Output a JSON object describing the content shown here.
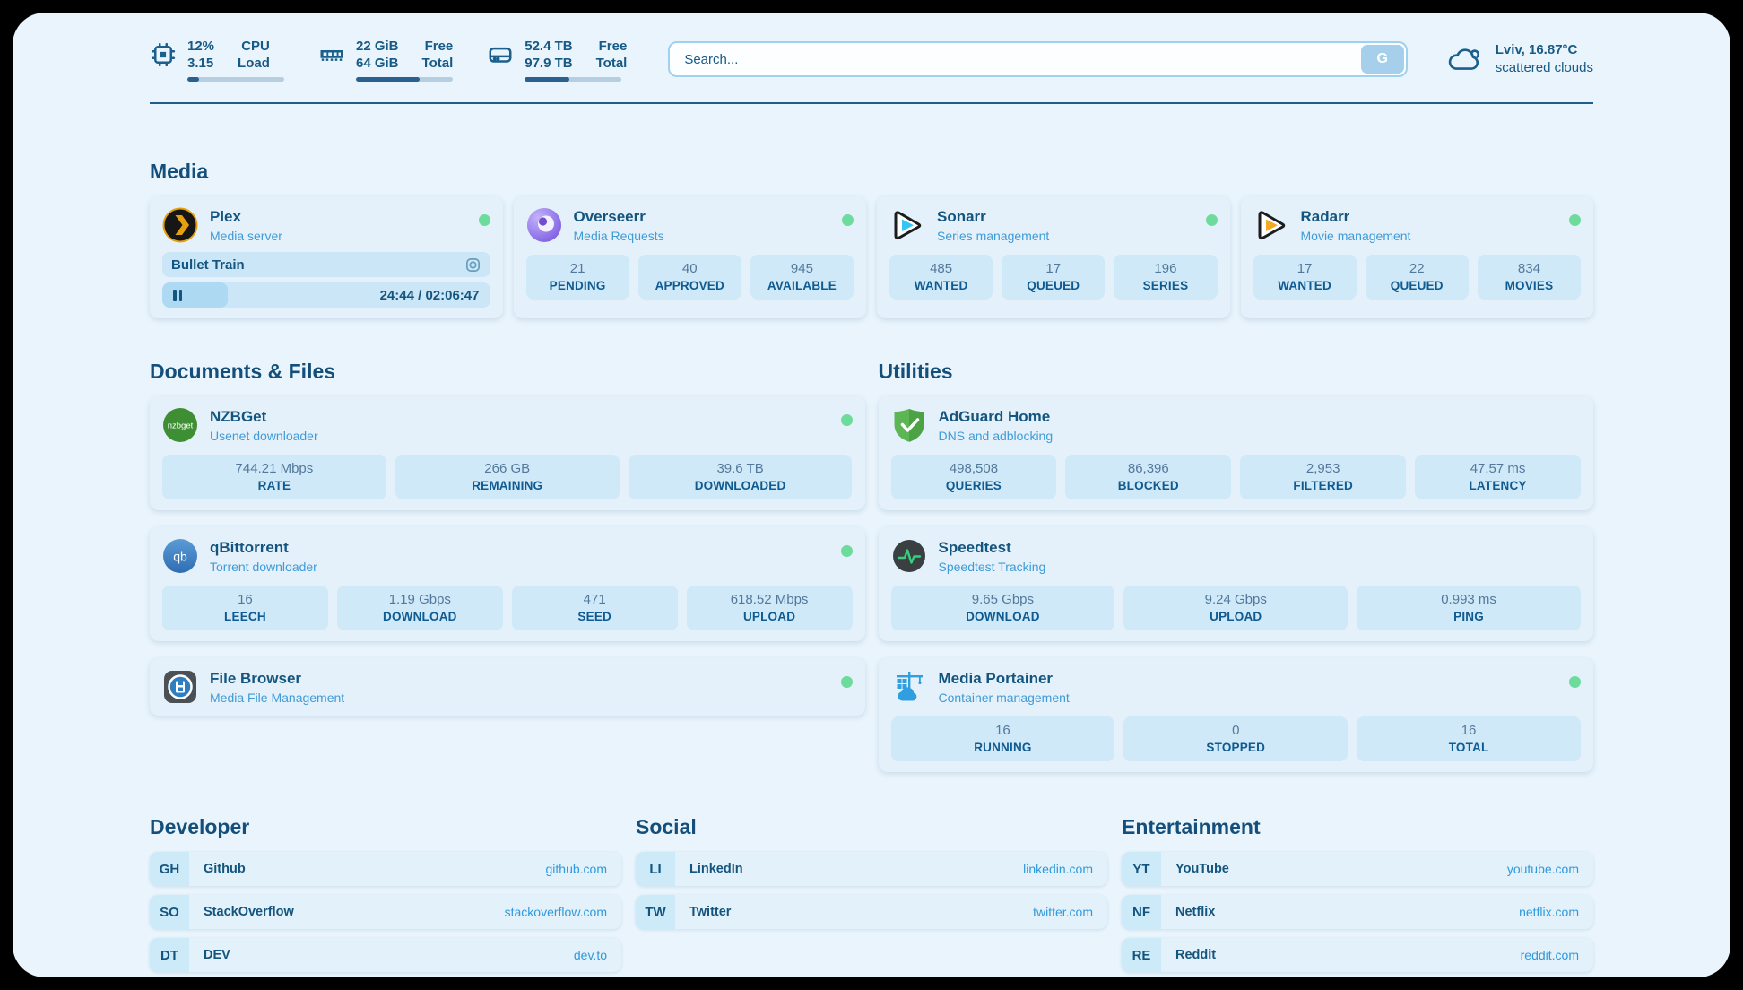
{
  "theme": {
    "page_bg": "#e9f4fc",
    "accent_text": "#14557f",
    "subtitle_blue": "#3e9bd8",
    "link_blue": "#2e99dc",
    "tile_bg": "#cfe9f8",
    "online_green": "#6cdb9b",
    "progress_fill": "#28618f"
  },
  "header": {
    "stats": [
      {
        "icon": "cpu-icon",
        "col1": [
          "12%",
          "3.15"
        ],
        "col2": [
          "CPU",
          "Load"
        ],
        "progress_pct": 12
      },
      {
        "icon": "ram-icon",
        "col1": [
          "22 GiB",
          "64 GiB"
        ],
        "col2": [
          "Free",
          "Total"
        ],
        "progress_pct": 66
      },
      {
        "icon": "disk-icon",
        "col1": [
          "52.4 TB",
          "97.9 TB"
        ],
        "col2": [
          "Free",
          "Total"
        ],
        "progress_pct": 46
      }
    ],
    "search": {
      "placeholder": "Search...",
      "button_label": "G"
    },
    "weather": {
      "icon": "cloud-icon",
      "location": "Lviv, 16.87°C",
      "condition": "scattered clouds"
    }
  },
  "sections": {
    "media": {
      "title": "Media",
      "apps": [
        {
          "name": "Plex",
          "desc": "Media server",
          "icon": "plex-icon",
          "online": true,
          "now_playing": {
            "title": "Bullet Train",
            "time": "24:44 / 02:06:47",
            "progress_pct": 20
          }
        },
        {
          "name": "Overseerr",
          "desc": "Media Requests",
          "icon": "overseerr-icon",
          "online": true,
          "stats": [
            {
              "value": "21",
              "label": "PENDING"
            },
            {
              "value": "40",
              "label": "APPROVED"
            },
            {
              "value": "945",
              "label": "AVAILABLE"
            }
          ]
        },
        {
          "name": "Sonarr",
          "desc": "Series management",
          "icon": "sonarr-icon",
          "online": true,
          "stats": [
            {
              "value": "485",
              "label": "WANTED"
            },
            {
              "value": "17",
              "label": "QUEUED"
            },
            {
              "value": "196",
              "label": "SERIES"
            }
          ]
        },
        {
          "name": "Radarr",
          "desc": "Movie management",
          "icon": "radarr-icon",
          "online": true,
          "stats": [
            {
              "value": "17",
              "label": "WANTED"
            },
            {
              "value": "22",
              "label": "QUEUED"
            },
            {
              "value": "834",
              "label": "MOVIES"
            }
          ]
        }
      ]
    },
    "documents": {
      "title": "Documents & Files",
      "apps": [
        {
          "name": "NZBGet",
          "desc": "Usenet downloader",
          "icon": "nzbget-icon",
          "online": true,
          "stats": [
            {
              "value": "744.21 Mbps",
              "label": "RATE"
            },
            {
              "value": "266 GB",
              "label": "REMAINING"
            },
            {
              "value": "39.6 TB",
              "label": "DOWNLOADED"
            }
          ]
        },
        {
          "name": "qBittorrent",
          "desc": "Torrent downloader",
          "icon": "qbittorrent-icon",
          "online": true,
          "stats": [
            {
              "value": "16",
              "label": "LEECH"
            },
            {
              "value": "1.19 Gbps",
              "label": "DOWNLOAD"
            },
            {
              "value": "471",
              "label": "SEED"
            },
            {
              "value": "618.52 Mbps",
              "label": "UPLOAD"
            }
          ]
        },
        {
          "name": "File Browser",
          "desc": "Media File Management",
          "icon": "filebrowser-icon",
          "online": true
        }
      ]
    },
    "utilities": {
      "title": "Utilities",
      "apps": [
        {
          "name": "AdGuard Home",
          "desc": "DNS and adblocking",
          "icon": "adguard-icon",
          "online": false,
          "stats": [
            {
              "value": "498,508",
              "label": "QUERIES"
            },
            {
              "value": "86,396",
              "label": "BLOCKED"
            },
            {
              "value": "2,953",
              "label": "FILTERED"
            },
            {
              "value": "47.57 ms",
              "label": "LATENCY"
            }
          ]
        },
        {
          "name": "Speedtest",
          "desc": "Speedtest Tracking",
          "icon": "speedtest-icon",
          "online": false,
          "stats": [
            {
              "value": "9.65 Gbps",
              "label": "DOWNLOAD"
            },
            {
              "value": "9.24 Gbps",
              "label": "UPLOAD"
            },
            {
              "value": "0.993 ms",
              "label": "PING"
            }
          ]
        },
        {
          "name": "Media Portainer",
          "desc": "Container management",
          "icon": "portainer-icon",
          "online": true,
          "stats": [
            {
              "value": "16",
              "label": "RUNNING"
            },
            {
              "value": "0",
              "label": "STOPPED"
            },
            {
              "value": "16",
              "label": "TOTAL"
            }
          ]
        }
      ]
    },
    "bookmarks": [
      {
        "title": "Developer",
        "links": [
          {
            "abbr": "GH",
            "name": "Github",
            "url": "github.com"
          },
          {
            "abbr": "SO",
            "name": "StackOverflow",
            "url": "stackoverflow.com"
          },
          {
            "abbr": "DT",
            "name": "DEV",
            "url": "dev.to"
          }
        ]
      },
      {
        "title": "Social",
        "links": [
          {
            "abbr": "LI",
            "name": "LinkedIn",
            "url": "linkedin.com"
          },
          {
            "abbr": "TW",
            "name": "Twitter",
            "url": "twitter.com"
          }
        ]
      },
      {
        "title": "Entertainment",
        "links": [
          {
            "abbr": "YT",
            "name": "YouTube",
            "url": "youtube.com"
          },
          {
            "abbr": "NF",
            "name": "Netflix",
            "url": "netflix.com"
          },
          {
            "abbr": "RE",
            "name": "Reddit",
            "url": "reddit.com"
          }
        ]
      }
    ]
  }
}
